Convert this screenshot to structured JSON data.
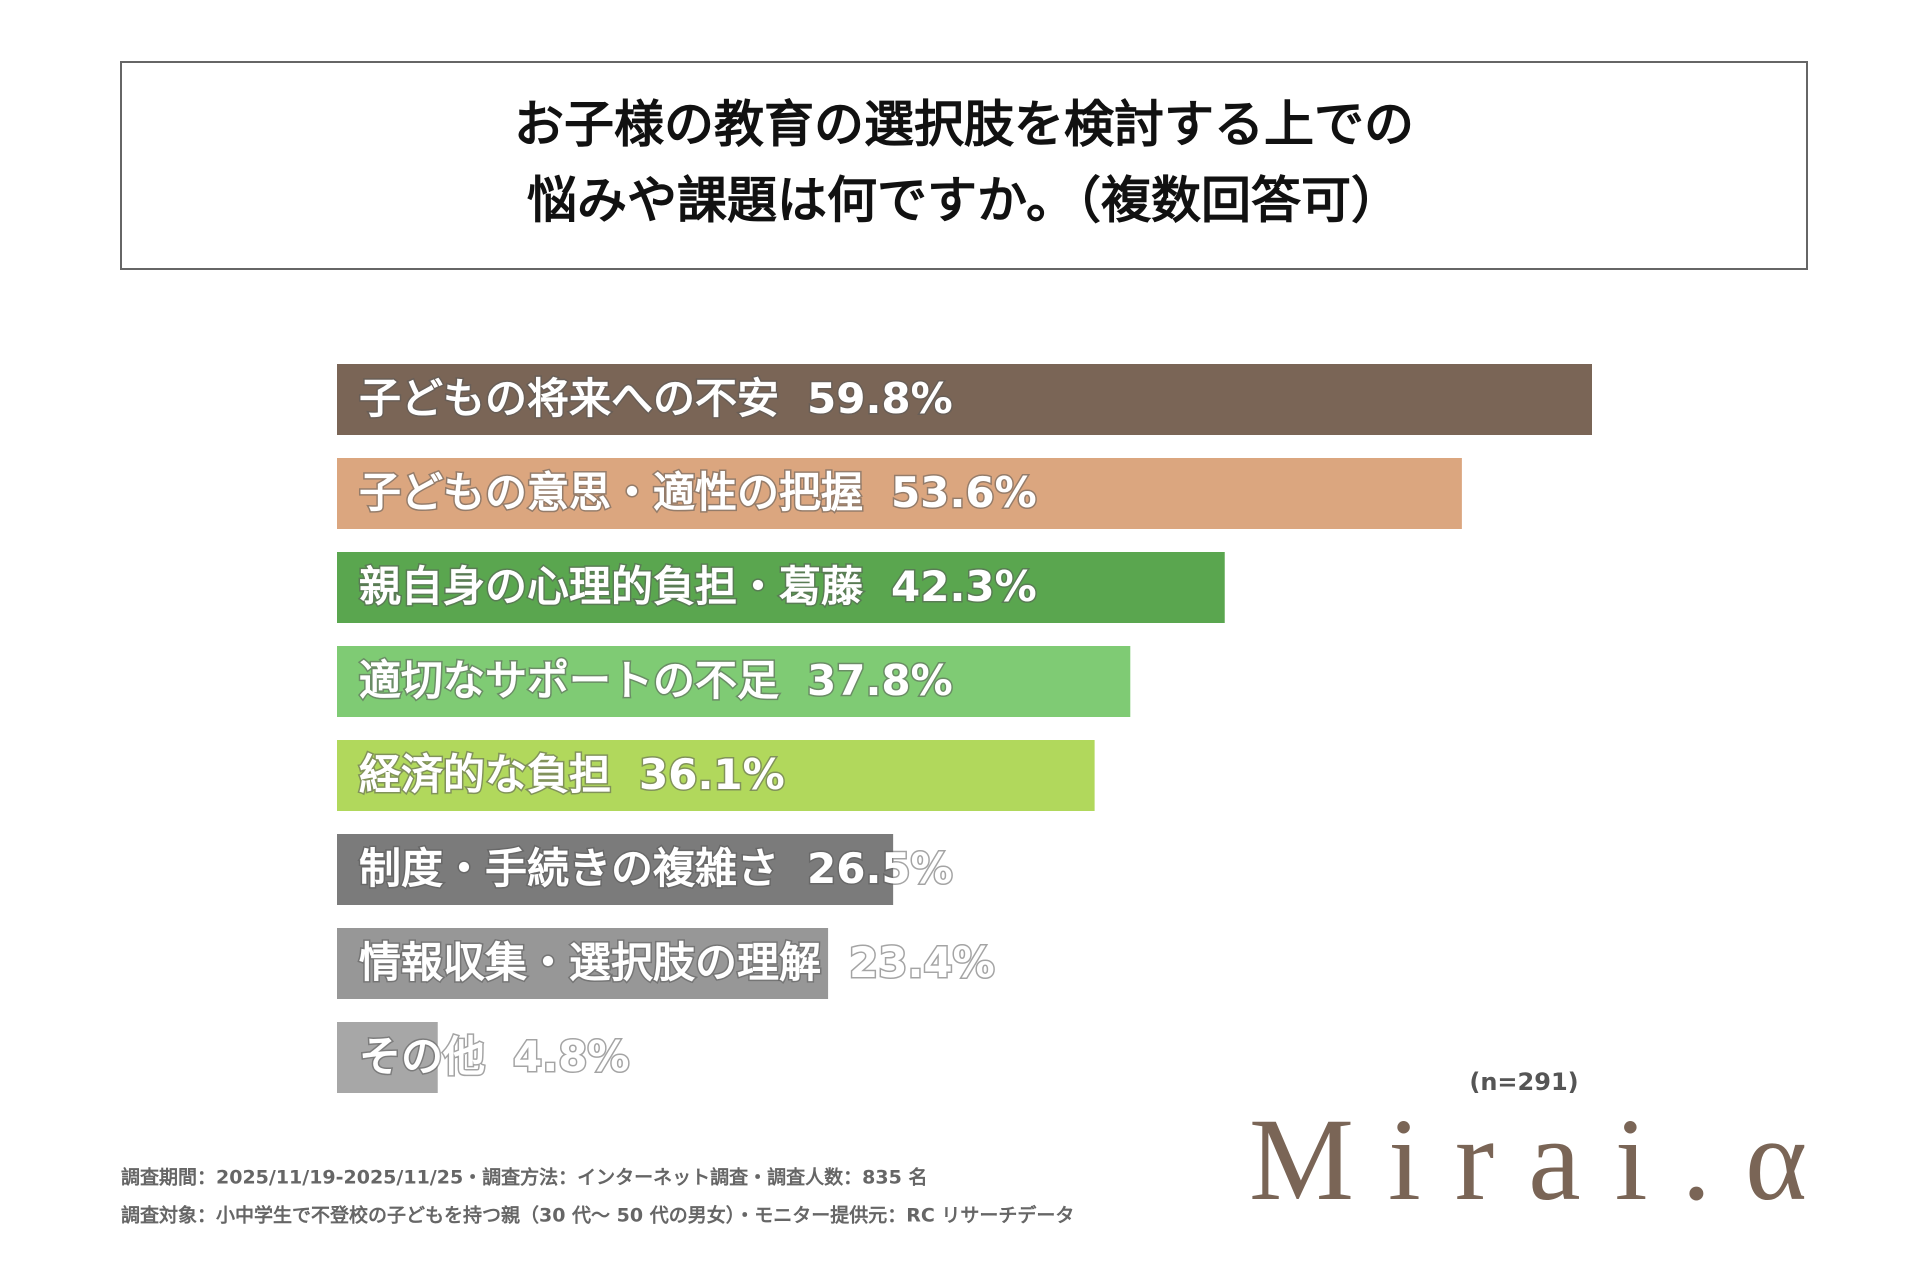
{
  "chart_data": {
    "type": "bar",
    "title": [
      "お子様の教育の選択肢を検討する上での",
      "悩みや課題は何ですか。（複数回答可）"
    ],
    "categories": [
      "子どもの将来への不安",
      "子どもの意思・適性の把握",
      "親自身の心理的負担・葛藤",
      "適切なサポートの不足",
      "経済的な負担",
      "制度・手続きの複雑さ",
      "情報収集・選択肢の理解",
      "その他"
    ],
    "values": [
      59.8,
      53.6,
      42.3,
      37.8,
      36.1,
      26.5,
      23.4,
      4.8
    ],
    "value_labels": [
      "59.8%",
      "53.6%",
      "42.3%",
      "37.8%",
      "36.1%",
      "26.5%",
      "23.4%",
      "4.8%"
    ],
    "colors": [
      "#7a6556",
      "#dba67f",
      "#5aa64f",
      "#7fcb74",
      "#b1d85c",
      "#7b7b7b",
      "#979797",
      "#a7a7a7"
    ],
    "sample_note": "(n=291)",
    "footnotes": [
      "調査期間：2025/11/19-2025/11/25・調査方法：インターネット調査・調査人数：835 名",
      "調査対象：小中学生で不登校の子どもを持つ親（30 代〜 50 代の男女）・モニター提供元：RC リサーチデータ"
    ]
  },
  "logo": "Mirai.α"
}
